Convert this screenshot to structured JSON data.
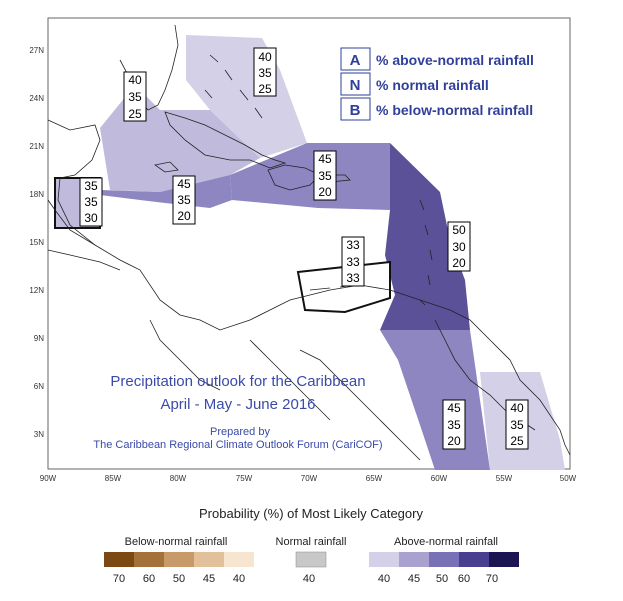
{
  "axes": {
    "lon_labels": [
      "90W",
      "85W",
      "80W",
      "75W",
      "70W",
      "65W",
      "60W",
      "55W",
      "50W"
    ],
    "lat_labels": [
      "3N",
      "6N",
      "9N",
      "12N",
      "15N",
      "18N",
      "21N",
      "24N",
      "27N"
    ]
  },
  "key": {
    "items": [
      {
        "letter": "A",
        "text": "% above-normal rainfall"
      },
      {
        "letter": "N",
        "text": "% normal rainfall"
      },
      {
        "letter": "B",
        "text": "% below-normal rainfall"
      }
    ]
  },
  "regions": [
    {
      "name": "bahamas",
      "color": "#d3d0e7",
      "values": [
        "40",
        "35",
        "25"
      ]
    },
    {
      "name": "cuba-north",
      "color": "#c0bbdc",
      "values": [
        "40",
        "35",
        "25"
      ]
    },
    {
      "name": "belize",
      "color": "#c0bbdc",
      "values": [
        "35",
        "35",
        "30"
      ]
    },
    {
      "name": "jamaica",
      "color": "#8e86c1",
      "values": [
        "45",
        "35",
        "20"
      ]
    },
    {
      "name": "hispaniola",
      "color": "#8e86c1",
      "values": [
        "45",
        "35",
        "20"
      ]
    },
    {
      "name": "abc-islands",
      "color": "#ffffff",
      "values": [
        "33",
        "33",
        "33"
      ]
    },
    {
      "name": "eastern-caribbean",
      "color": "#5b5199",
      "values": [
        "50",
        "30",
        "20"
      ]
    },
    {
      "name": "guianas",
      "color": "#8e86c1",
      "values": [
        "45",
        "35",
        "20"
      ]
    },
    {
      "name": "suriname-east",
      "color": "#d3d0e7",
      "values": [
        "40",
        "35",
        "25"
      ]
    }
  ],
  "title": {
    "line1": "Precipitation outlook for the Caribbean",
    "line2": "April - May - June 2016",
    "prepared": "Prepared by",
    "org": "The Caribbean Regional Climate Outlook Forum (CariCOF)"
  },
  "scale": {
    "title": "Probability (%) of Most Likely Category",
    "below": {
      "label": "Below-normal rainfall",
      "ticks": [
        "70",
        "60",
        "50",
        "45",
        "40"
      ],
      "colors": [
        "#7a4a12",
        "#a5713a",
        "#c89a6a",
        "#e2c09a",
        "#f7e6cf"
      ]
    },
    "normal": {
      "label": "Normal rainfall",
      "ticks": [
        "40"
      ],
      "colors": [
        "#c8c8c8"
      ]
    },
    "above": {
      "label": "Above-normal rainfall",
      "ticks": [
        "40",
        "45",
        "50",
        "60",
        "70"
      ],
      "colors": [
        "#d3d0e7",
        "#a9a2d0",
        "#7a70b5",
        "#4a3f8e",
        "#1d1551"
      ]
    }
  }
}
